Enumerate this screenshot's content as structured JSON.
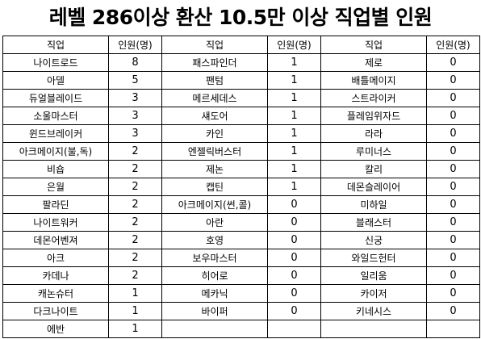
{
  "title": "레벨 286이상 환산 10.5만 이상 직업별 인원",
  "headers": [
    "직업",
    "인원(명)",
    "직업",
    "인원(명)",
    "직업",
    "인원(명)"
  ],
  "rows": [
    [
      "나이트로드",
      "8",
      "패스파인더",
      "1",
      "제로",
      "0"
    ],
    [
      "아델",
      "5",
      "팬텀",
      "1",
      "배틀메이지",
      "0"
    ],
    [
      "듀얼블레이드",
      "3",
      "메르세데스",
      "1",
      "스트라이커",
      "0"
    ],
    [
      "소울마스터",
      "3",
      "섀도어",
      "1",
      "플레임위자드",
      "0"
    ],
    [
      "윈드브레이커",
      "3",
      "카인",
      "1",
      "라라",
      "0"
    ],
    [
      "아크메이지(불,독)",
      "2",
      "엔젤릭버스터",
      "1",
      "루미너스",
      "0"
    ],
    [
      "비숍",
      "2",
      "제논",
      "1",
      "칼리",
      "0"
    ],
    [
      "은월",
      "2",
      "캡틴",
      "1",
      "데몬슬레이어",
      "0"
    ],
    [
      "팔라딘",
      "2",
      "아크메이지(썬,콜)",
      "0",
      "미하일",
      "0"
    ],
    [
      "나이트워커",
      "2",
      "아란",
      "0",
      "블래스터",
      "0"
    ],
    [
      "데몬어벤져",
      "2",
      "호영",
      "0",
      "신궁",
      "0"
    ],
    [
      "아크",
      "2",
      "보우마스터",
      "0",
      "와일드헌터",
      "0"
    ],
    [
      "카데나",
      "2",
      "히어로",
      "0",
      "일리움",
      "0"
    ],
    [
      "캐논슈터",
      "1",
      "메카닉",
      "0",
      "카이저",
      "0"
    ],
    [
      "다크나이트",
      "1",
      "바이퍼",
      "0",
      "키네시스",
      "0"
    ],
    [
      "에반",
      "1",
      "",
      "",
      "",
      ""
    ]
  ]
}
